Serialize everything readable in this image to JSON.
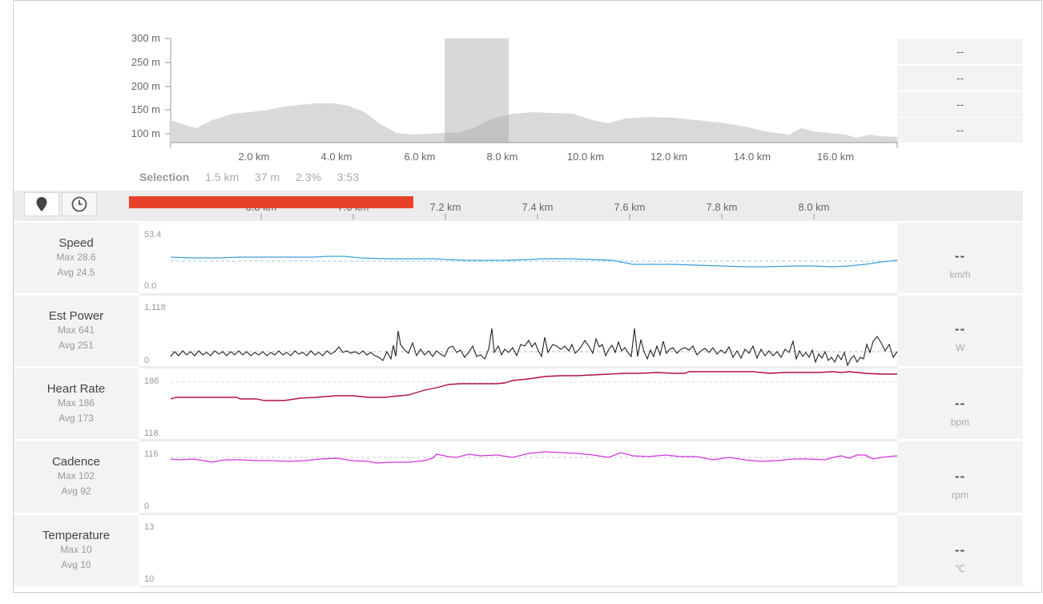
{
  "elevation": {
    "y_ticks": [
      "300 m",
      "250 m",
      "200 m",
      "150 m",
      "100 m"
    ],
    "x_ticks": [
      "2.0 km",
      "4.0 km",
      "6.0 km",
      "8.0 km",
      "10.0 km",
      "12.0 km",
      "14.0 km",
      "16.0 km"
    ],
    "stats": [
      "--",
      "--",
      "--",
      "--"
    ]
  },
  "selection": {
    "label": "Selection",
    "distance": "1.5 km",
    "elevation": "37 m",
    "grade": "2.3%",
    "time": "3:53"
  },
  "toolbar": {
    "pin_icon": "map-pin-icon",
    "clock_icon": "clock-icon",
    "accent_color": "#e8432a",
    "zoom_ticks": [
      "6.8 km",
      "7.0 km",
      "7.2 km",
      "7.4 km",
      "7.6 km",
      "7.8 km",
      "8.0 km"
    ]
  },
  "rows": [
    {
      "name": "Speed",
      "max": "Max 28.6",
      "avg": "Avg 24.5",
      "ymax": "53.4",
      "ymin": "0.0",
      "value": "--",
      "unit": "km/h",
      "color": "#3a9fd8"
    },
    {
      "name": "Est Power",
      "max": "Max 641",
      "avg": "Avg 251",
      "ymax": "1,118",
      "ymin": "0",
      "value": "--",
      "unit": "W",
      "color": "#222222"
    },
    {
      "name": "Heart Rate",
      "max": "Max 186",
      "avg": "Avg 173",
      "ymax": "186",
      "ymin": "118",
      "value": "--",
      "unit": "bpm",
      "color": "#b0103a"
    },
    {
      "name": "Cadence",
      "max": "Max 102",
      "avg": "Avg 92",
      "ymax": "116",
      "ymin": "0",
      "value": "--",
      "unit": "rpm",
      "color": "#d633e0"
    },
    {
      "name": "Temperature",
      "max": "Max 10",
      "avg": "Avg 10",
      "ymax": "13",
      "ymin": "10",
      "value": "--",
      "unit": "℃",
      "color": "#888888"
    }
  ]
}
